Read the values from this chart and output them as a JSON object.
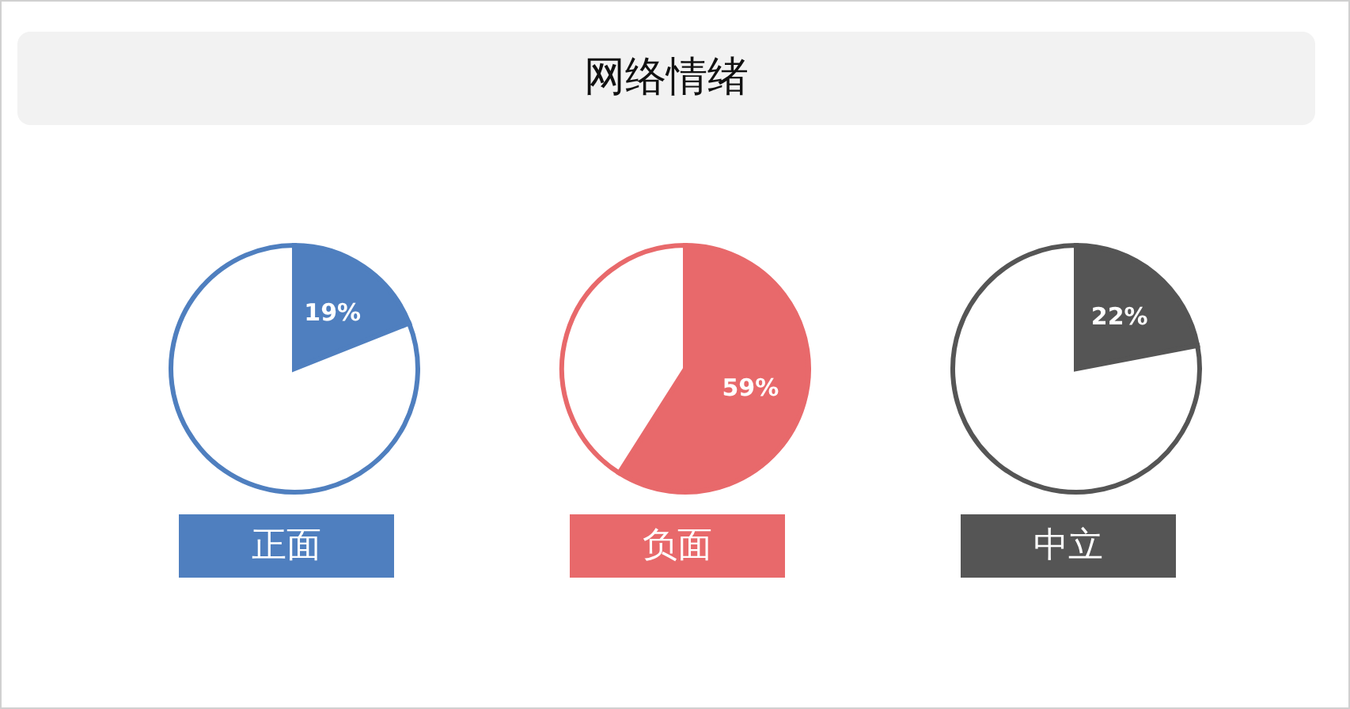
{
  "chart_data": [
    {
      "type": "other",
      "title": "网络情绪"
    },
    {
      "type": "pie",
      "title": "正面",
      "categories": [
        null,
        null
      ],
      "values": [
        19,
        81
      ],
      "colors": [
        "#4f7fbf",
        "#ffffff"
      ],
      "value_labels": [
        "19%",
        null
      ]
    },
    {
      "type": "pie",
      "title": "负面",
      "categories": [
        null,
        null
      ],
      "values": [
        59,
        41
      ],
      "colors": [
        "#e8696b",
        "#ffffff"
      ],
      "value_labels": [
        "59%",
        null
      ]
    },
    {
      "type": "pie",
      "title": "中立",
      "categories": [
        null,
        null
      ],
      "values": [
        22,
        78
      ],
      "colors": [
        "#555555",
        "#ffffff"
      ],
      "value_labels": [
        "22%",
        null
      ]
    }
  ]
}
